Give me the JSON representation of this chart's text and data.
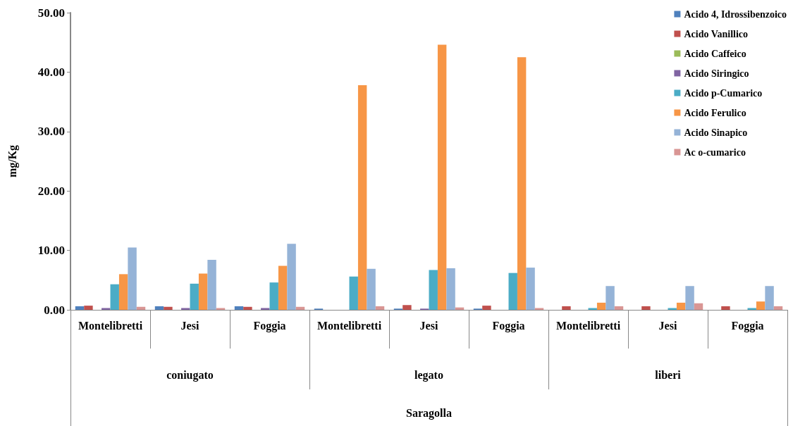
{
  "chart_data": {
    "type": "bar",
    "ylabel": "mg/Kg",
    "categories": [
      "Montelibretti",
      "Jesi",
      "Foggia",
      "Montelibretti",
      "Jesi",
      "Foggia",
      "Montelibretti",
      "Jesi",
      "Foggia"
    ],
    "annotations": [
      "coniugato",
      "legato",
      "liberi",
      "Saragolla"
    ],
    "series": [
      {
        "name": "Acido 4, Idrossibenzoico",
        "color": "#4f81bd",
        "values": [
          0.6,
          0.6,
          0.6,
          0.2,
          0.2,
          0.2,
          0,
          0,
          0
        ]
      },
      {
        "name": "Acido Vanillico",
        "color": "#c0504d",
        "values": [
          0.7,
          0.5,
          0.5,
          0,
          0.8,
          0.7,
          0.6,
          0.6,
          0.6
        ]
      },
      {
        "name": "Acido Caffeico",
        "color": "#9bbb59",
        "values": [
          0,
          0,
          0,
          0,
          0,
          0,
          0,
          0,
          0
        ]
      },
      {
        "name": "Acido Siringico",
        "color": "#8064a2",
        "values": [
          0.3,
          0.3,
          0.3,
          0,
          0.2,
          0,
          0,
          0,
          0
        ]
      },
      {
        "name": "Acido p-Cumarico",
        "color": "#4bacc6",
        "values": [
          4.3,
          4.4,
          4.6,
          5.6,
          6.7,
          6.2,
          0.3,
          0.3,
          0.3
        ]
      },
      {
        "name": "Acido Ferulico",
        "color": "#f79646",
        "values": [
          6.0,
          6.1,
          7.4,
          37.8,
          44.6,
          42.5,
          1.2,
          1.2,
          1.4
        ]
      },
      {
        "name": "Acido Sinapico",
        "color": "#95b3d7",
        "values": [
          10.5,
          8.4,
          11.1,
          6.9,
          7.0,
          7.1,
          4.0,
          4.0,
          4.0
        ]
      },
      {
        "name": "Ac o-cumarico",
        "color": "#d99694",
        "values": [
          0.5,
          0.3,
          0.5,
          0.6,
          0.4,
          0.3,
          0.6,
          1.1,
          0.6
        ]
      }
    ],
    "ylim": [
      0,
      50
    ],
    "yticks": [
      {
        "value": 0,
        "label": "0.00"
      },
      {
        "value": 10,
        "label": "10.00"
      },
      {
        "value": 20,
        "label": "20.00"
      },
      {
        "value": 30,
        "label": "30.00"
      },
      {
        "value": 40,
        "label": "40.00"
      },
      {
        "value": 50,
        "label": "50.00"
      }
    ],
    "grid": false,
    "legend": "top right"
  }
}
